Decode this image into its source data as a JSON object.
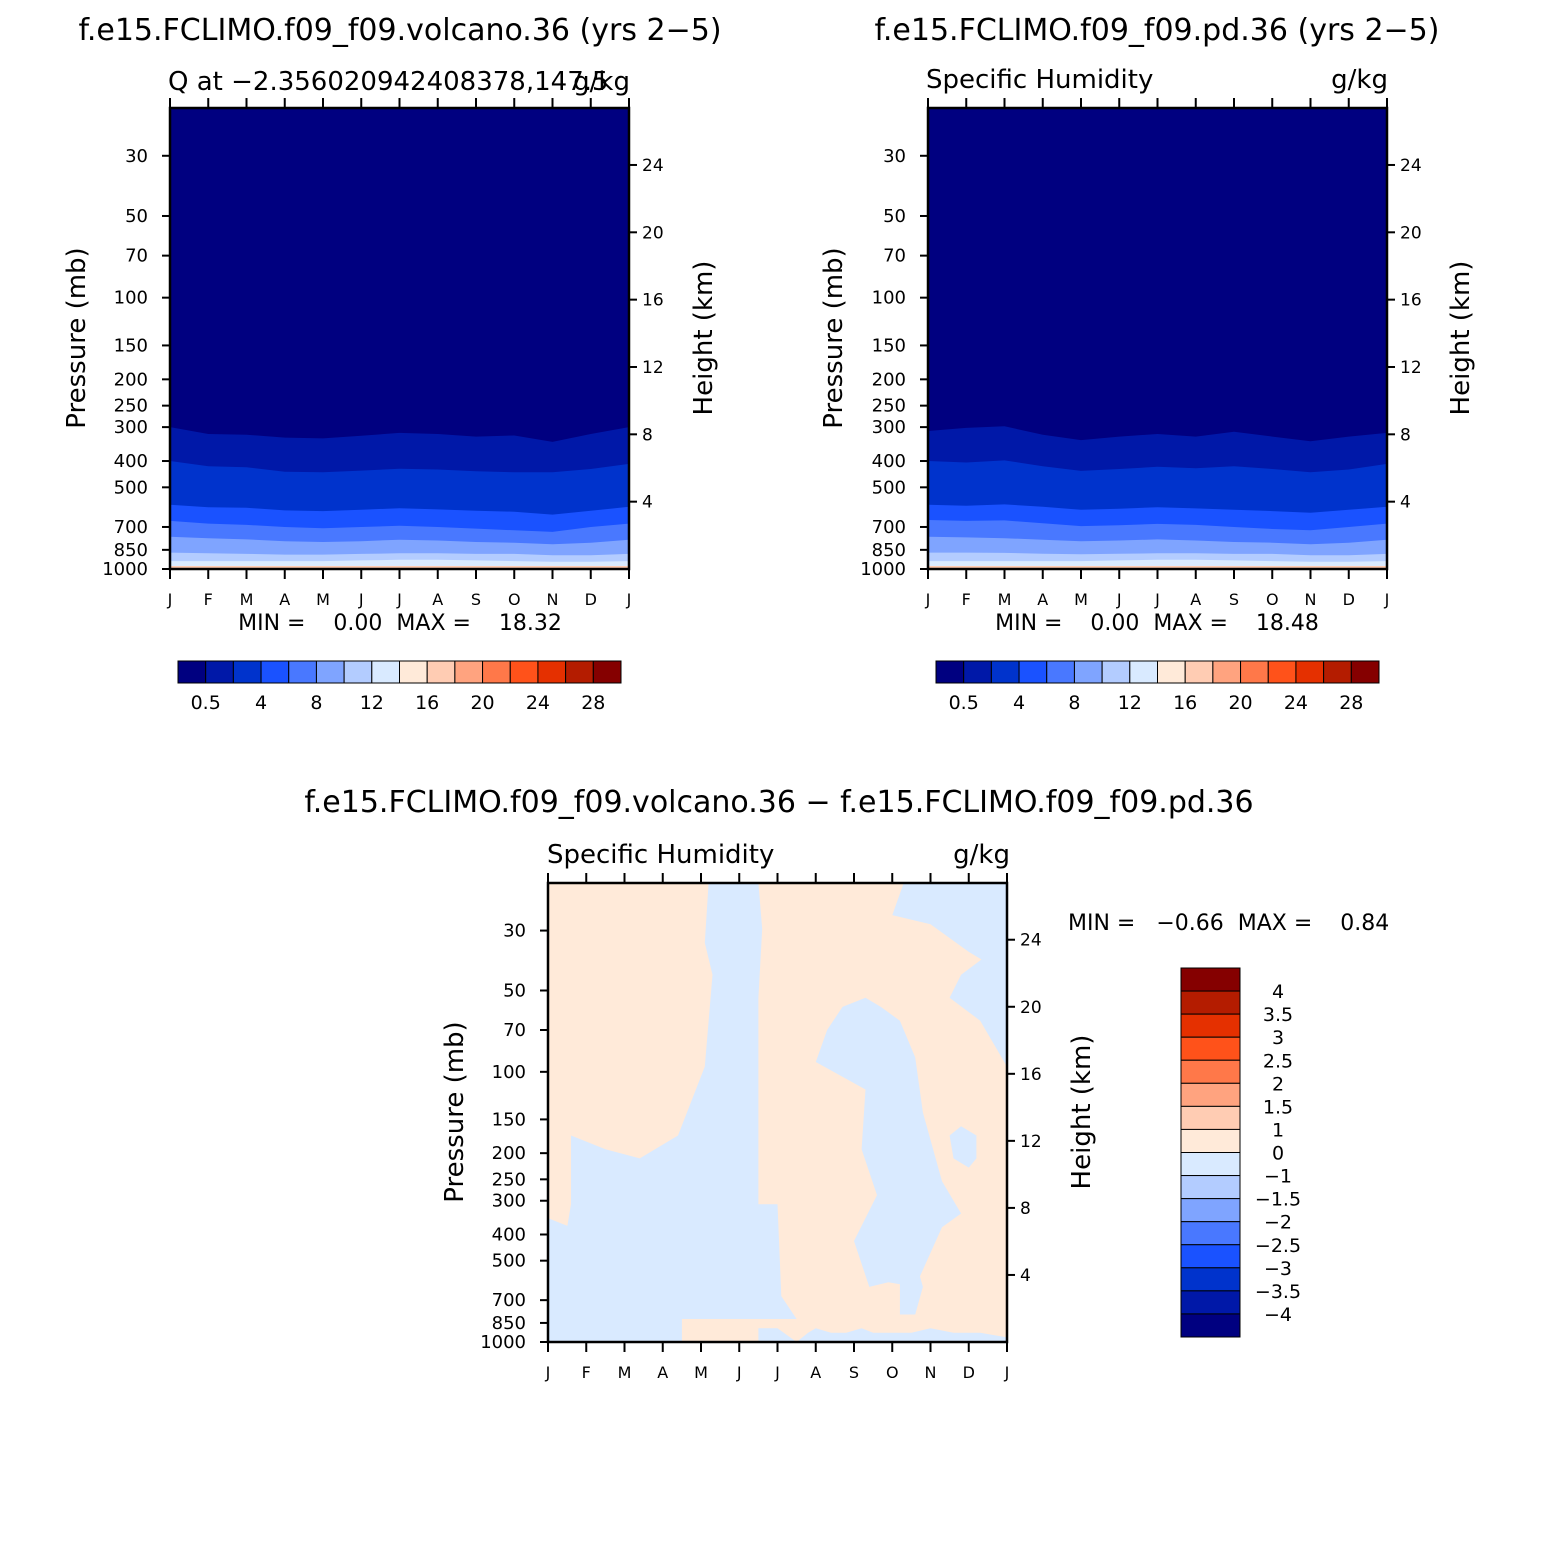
{
  "colors": {
    "seq_palette": [
      "#000080",
      "#0018A8",
      "#0033CC",
      "#1A52FF",
      "#4978FF",
      "#7FA4FF",
      "#B3CCFF",
      "#D9EAFF",
      "#FFEAD9",
      "#FFCCB3",
      "#FFA37F",
      "#FF7849",
      "#FF521A",
      "#E53000",
      "#B41C00",
      "#850000"
    ],
    "diff_palette": [
      "#000080",
      "#0018A8",
      "#0033CC",
      "#1A52FF",
      "#4978FF",
      "#7FA4FF",
      "#B3CCFF",
      "#D9EAFF",
      "#FFEAD9",
      "#FFCCB3",
      "#FFA37F",
      "#FF7849",
      "#FF521A",
      "#E53000",
      "#B41C00",
      "#850000"
    ],
    "diff_pos": "#FFEAD9",
    "diff_neg": "#D9EAFF"
  },
  "shared_axes": {
    "months": [
      "J",
      "F",
      "M",
      "A",
      "M",
      "J",
      "J",
      "A",
      "S",
      "O",
      "N",
      "D",
      "J"
    ],
    "pressure_ticks": [
      30,
      50,
      70,
      100,
      150,
      200,
      250,
      300,
      400,
      500,
      700,
      850,
      1000
    ],
    "pressure_tick_labels": [
      "30",
      "50",
      "70",
      "100",
      "150",
      "200",
      "250",
      "300",
      "400",
      "500",
      "700",
      "850",
      "1000"
    ],
    "height_ticks": [
      4,
      8,
      12,
      16,
      20,
      24
    ],
    "height_tick_labels": [
      "4",
      "8",
      "12",
      "16",
      "20",
      "24"
    ],
    "left_label": "Pressure (mb)",
    "right_label": "Height (km)"
  },
  "chart_data": [
    {
      "type": "heatmap",
      "title": "f.e15.FCLIMO.f09_f09.volcano.36 (yrs 2−5)",
      "left_subtitle": "Q at −2.356020942408378,147.5",
      "right_subtitle": "g/kg",
      "stats": "MIN =    0.00  MAX =    18.32",
      "x_range": [
        "Jan",
        "Jan"
      ],
      "y_range_mb": [
        1000,
        20
      ],
      "colorbar_labels": [
        "0.5",
        "4",
        "8",
        "12",
        "16",
        "20",
        "24",
        "28"
      ],
      "contour_levels_g_per_kg_top_to_bottom": [
        0.5,
        2,
        4,
        6,
        8,
        10,
        12,
        14
      ],
      "level_pressure_mb": [
        [
          300,
          318,
          320,
          328,
          330,
          323,
          315,
          318,
          325,
          322,
          340,
          318,
          300
        ],
        [
          400,
          418,
          422,
          438,
          440,
          434,
          427,
          430,
          436,
          440,
          440,
          428,
          410
        ],
        [
          580,
          592,
          595,
          608,
          612,
          605,
          597,
          603,
          610,
          615,
          630,
          610,
          590
        ],
        [
          665,
          680,
          688,
          700,
          708,
          700,
          693,
          700,
          710,
          720,
          730,
          700,
          680
        ],
        [
          760,
          770,
          778,
          790,
          795,
          790,
          780,
          785,
          795,
          800,
          810,
          800,
          780
        ],
        [
          870,
          875,
          880,
          885,
          885,
          880,
          875,
          875,
          880,
          880,
          890,
          890,
          880
        ],
        [
          935,
          935,
          935,
          935,
          935,
          930,
          925,
          925,
          930,
          935,
          940,
          940,
          935
        ],
        [
          985,
          985,
          985,
          985,
          985,
          985,
          980,
          980,
          985,
          985,
          985,
          985,
          985
        ]
      ]
    },
    {
      "type": "heatmap",
      "title": "f.e15.FCLIMO.f09_f09.pd.36 (yrs 2−5)",
      "left_subtitle": "Specific Humidity",
      "right_subtitle": "g/kg",
      "stats": "MIN =    0.00  MAX =    18.48",
      "x_range": [
        "Jan",
        "Jan"
      ],
      "y_range_mb": [
        1000,
        20
      ],
      "colorbar_labels": [
        "0.5",
        "4",
        "8",
        "12",
        "16",
        "20",
        "24",
        "28"
      ],
      "contour_levels_g_per_kg_top_to_bottom": [
        0.5,
        2,
        4,
        6,
        8,
        10,
        12,
        14
      ],
      "level_pressure_mb": [
        [
          310,
          302,
          298,
          320,
          335,
          325,
          318,
          325,
          312,
          325,
          338,
          325,
          315
        ],
        [
          400,
          405,
          398,
          418,
          435,
          428,
          420,
          425,
          418,
          428,
          440,
          430,
          410
        ],
        [
          580,
          585,
          578,
          590,
          605,
          600,
          592,
          598,
          605,
          612,
          620,
          605,
          590
        ],
        [
          660,
          665,
          662,
          678,
          695,
          690,
          682,
          688,
          700,
          712,
          720,
          700,
          680
        ],
        [
          760,
          765,
          770,
          780,
          790,
          785,
          778,
          785,
          795,
          800,
          810,
          800,
          780
        ],
        [
          870,
          870,
          872,
          878,
          882,
          878,
          875,
          875,
          880,
          880,
          890,
          890,
          880
        ],
        [
          935,
          935,
          935,
          935,
          935,
          930,
          925,
          925,
          930,
          935,
          940,
          940,
          935
        ],
        [
          985,
          985,
          985,
          985,
          985,
          985,
          980,
          980,
          985,
          985,
          985,
          985,
          985
        ]
      ]
    },
    {
      "type": "heatmap",
      "title": "f.e15.FCLIMO.f09_f09.volcano.36 − f.e15.FCLIMO.f09_f09.pd.36",
      "left_subtitle": "Specific Humidity",
      "right_subtitle": "g/kg",
      "stats": "MIN =   −0.66  MAX =    0.84",
      "x_range": [
        "Jan",
        "Jan"
      ],
      "y_range_mb": [
        1000,
        20
      ],
      "colorbar_labels": [
        "4",
        "3.5",
        "3",
        "2.5",
        "2",
        "1.5",
        "1",
        "0",
        "−1",
        "−1.5",
        "−2",
        "−2.5",
        "−3",
        "−3.5",
        "−4"
      ],
      "negative_regions": [
        [
          [
            0,
            0
          ],
          [
            1,
            0
          ],
          [
            2.3,
            0
          ],
          [
            3.5,
            0
          ],
          [
            3.5,
            0.2
          ],
          [
            3.0,
            0.2
          ],
          [
            2.4,
            0.22
          ],
          [
            1.7,
            0.23
          ],
          [
            1.2,
            0.2
          ],
          [
            0.6,
            0.25
          ],
          [
            0.3,
            0.26
          ],
          [
            0,
            0.27
          ]
        ],
        [
          [
            0.6,
            0.45
          ],
          [
            1.5,
            0.42
          ],
          [
            2.4,
            0.4
          ],
          [
            3.4,
            0.45
          ],
          [
            4.1,
            0.6
          ],
          [
            4.3,
            0.8
          ],
          [
            4.1,
            0.87
          ],
          [
            4.2,
            1
          ],
          [
            5.5,
            1
          ],
          [
            5.6,
            0.9
          ],
          [
            5.5,
            0.75
          ],
          [
            5.5,
            0.6
          ],
          [
            5.5,
            0.42
          ],
          [
            5.5,
            0.3
          ],
          [
            6,
            0.3
          ],
          [
            6.1,
            0.1
          ],
          [
            6.5,
            0.05
          ],
          [
            5.5,
            0.05
          ],
          [
            4,
            0.05
          ],
          [
            3.0,
            0.05
          ],
          [
            2.2,
            0.03
          ],
          [
            1.5,
            0.02
          ],
          [
            0.6,
            0.02
          ],
          [
            0.4,
            0.2
          ],
          [
            0.6,
            0.3
          ]
        ],
        [
          [
            6.5,
            0
          ],
          [
            8.0,
            0
          ],
          [
            9.5,
            0
          ],
          [
            11,
            0
          ],
          [
            12,
            0
          ],
          [
            12,
            0.01
          ],
          [
            11.3,
            0.02
          ],
          [
            10.6,
            0.02
          ],
          [
            10,
            0.03
          ],
          [
            9.5,
            0.02
          ],
          [
            8.9,
            0.02
          ],
          [
            8.5,
            0.02
          ],
          [
            8.2,
            0.03
          ],
          [
            7.8,
            0.02
          ],
          [
            7.4,
            0.02
          ],
          [
            7,
            0.03
          ],
          [
            6.8,
            0.02
          ]
        ],
        [
          [
            7.0,
            0.61
          ],
          [
            8.3,
            0.55
          ],
          [
            8.2,
            0.42
          ],
          [
            8.6,
            0.32
          ],
          [
            8.0,
            0.22
          ],
          [
            8.4,
            0.12
          ],
          [
            8.9,
            0.13
          ],
          [
            9.6,
            0.12
          ],
          [
            10.3,
            0.25
          ],
          [
            10.8,
            0.28
          ],
          [
            10.3,
            0.35
          ],
          [
            9.8,
            0.5
          ],
          [
            9.6,
            0.62
          ],
          [
            9.2,
            0.7
          ],
          [
            8.7,
            0.73
          ],
          [
            8.3,
            0.75
          ],
          [
            7.7,
            0.73
          ],
          [
            7.3,
            0.68
          ]
        ],
        [
          [
            9.2,
            0.15
          ],
          [
            9.6,
            0.18
          ],
          [
            9.8,
            0.12
          ],
          [
            9.6,
            0.06
          ],
          [
            9.2,
            0.06
          ]
        ],
        [
          [
            9.0,
            0.93
          ],
          [
            10.0,
            0.91
          ],
          [
            11.0,
            0.85
          ],
          [
            12,
            0.8
          ],
          [
            12,
            1
          ],
          [
            10.5,
            1
          ],
          [
            9.3,
            1
          ]
        ],
        [
          [
            10.5,
            0.45
          ],
          [
            10.8,
            0.47
          ],
          [
            11.2,
            0.45
          ],
          [
            11.2,
            0.4
          ],
          [
            11.0,
            0.38
          ],
          [
            10.6,
            0.4
          ]
        ],
        [
          [
            5.5,
            0.0
          ],
          [
            6.5,
            0.0
          ],
          [
            6.0,
            0.03
          ],
          [
            5.5,
            0.03
          ]
        ],
        [
          [
            12,
            0.6
          ],
          [
            11.3,
            0.7
          ],
          [
            10.5,
            0.75
          ],
          [
            10.8,
            0.8
          ],
          [
            11.6,
            0.85
          ],
          [
            12,
            0.9
          ]
        ]
      ]
    }
  ]
}
